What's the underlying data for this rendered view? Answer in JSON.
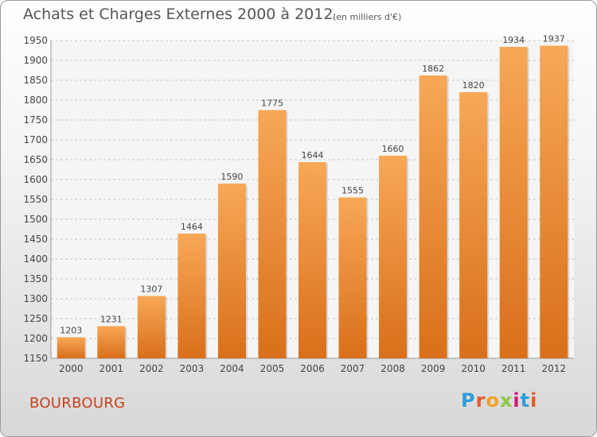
{
  "header": {
    "title": "Achats et Charges Externes 2000 à 2012",
    "subtitle": "(en milliers d'€)"
  },
  "footer": {
    "commune": "BOURBOURG",
    "logo": {
      "letters": [
        "P",
        "r",
        "o",
        "x",
        "i",
        "t",
        "i"
      ],
      "colors": [
        "#2f9ed9",
        "#e6592f",
        "#f1a22b",
        "#8cc63f",
        "#d4147b",
        "#2f9ed9",
        "#e6592f"
      ]
    }
  },
  "colors": {
    "bar_top": "#f7a857",
    "bar_bottom": "#d96f1a",
    "grid": "#c8c8c8",
    "tick_text": "#444444"
  },
  "chart_data": {
    "type": "bar",
    "categories": [
      "2000",
      "2001",
      "2002",
      "2003",
      "2004",
      "2005",
      "2006",
      "2007",
      "2008",
      "2009",
      "2010",
      "2011",
      "2012"
    ],
    "values": [
      1203,
      1231,
      1307,
      1464,
      1590,
      1775,
      1644,
      1555,
      1660,
      1862,
      1820,
      1934,
      1937
    ],
    "title": "Achats et Charges Externes 2000 à 2012",
    "ylim": [
      1150,
      1950
    ],
    "yticks": [
      1150,
      1200,
      1250,
      1300,
      1350,
      1400,
      1450,
      1500,
      1550,
      1600,
      1650,
      1700,
      1750,
      1800,
      1850,
      1900,
      1950
    ],
    "grid": true,
    "data_labels": true
  }
}
